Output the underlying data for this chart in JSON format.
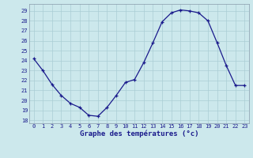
{
  "hours": [
    0,
    1,
    2,
    3,
    4,
    5,
    6,
    7,
    8,
    9,
    10,
    11,
    12,
    13,
    14,
    15,
    16,
    17,
    18,
    19,
    20,
    21,
    22,
    23
  ],
  "temperatures": [
    24.2,
    23.0,
    21.6,
    20.5,
    19.7,
    19.3,
    18.5,
    18.4,
    19.3,
    20.5,
    21.8,
    22.1,
    23.8,
    25.8,
    27.9,
    28.8,
    29.1,
    29.0,
    28.8,
    28.0,
    25.8,
    23.5,
    21.5,
    21.5
  ],
  "bg_color": "#cce8ec",
  "grid_color": "#aacdd4",
  "line_color": "#1a1a8c",
  "marker_color": "#1a1a8c",
  "xlabel": "Graphe des températures (°c)",
  "ylabel_ticks": [
    18,
    19,
    20,
    21,
    22,
    23,
    24,
    25,
    26,
    27,
    28,
    29
  ],
  "ylim": [
    17.7,
    29.7
  ],
  "xlim": [
    -0.5,
    23.5
  ],
  "tick_color": "#1a1a8c",
  "xlabel_color": "#1a1a8c",
  "axis_color": "#8899aa",
  "tick_fontsize": 5.0,
  "xlabel_fontsize": 6.5
}
